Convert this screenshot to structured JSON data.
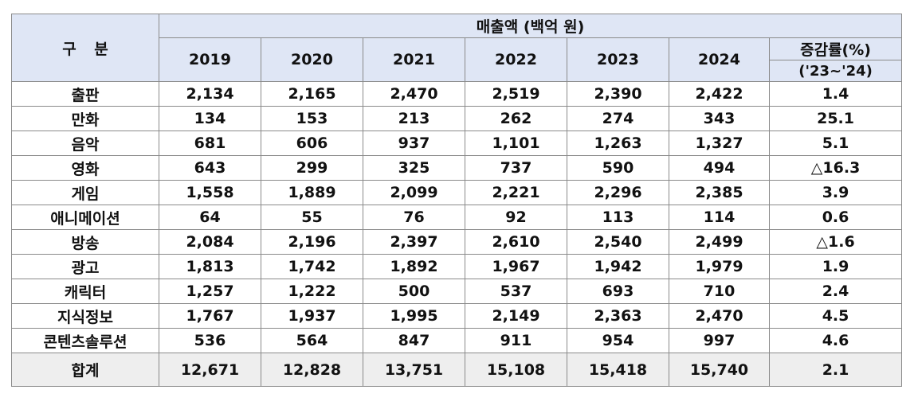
{
  "header": {
    "category_label": "구 분",
    "revenue_label": "매출액 (백억 원)",
    "years": [
      "2019",
      "2020",
      "2021",
      "2022",
      "2023",
      "2024"
    ],
    "change_label": "증감률(%)",
    "change_period": "('23~'24)"
  },
  "rows": [
    {
      "category": "출판",
      "values": [
        "2,134",
        "2,165",
        "2,470",
        "2,519",
        "2,390",
        "2,422"
      ],
      "change": "1.4"
    },
    {
      "category": "만화",
      "values": [
        "134",
        "153",
        "213",
        "262",
        "274",
        "343"
      ],
      "change": "25.1"
    },
    {
      "category": "음악",
      "values": [
        "681",
        "606",
        "937",
        "1,101",
        "1,263",
        "1,327"
      ],
      "change": "5.1"
    },
    {
      "category": "영화",
      "values": [
        "643",
        "299",
        "325",
        "737",
        "590",
        "494"
      ],
      "change": "△16.3"
    },
    {
      "category": "게임",
      "values": [
        "1,558",
        "1,889",
        "2,099",
        "2,221",
        "2,296",
        "2,385"
      ],
      "change": "3.9"
    },
    {
      "category": "애니메이션",
      "values": [
        "64",
        "55",
        "76",
        "92",
        "113",
        "114"
      ],
      "change": "0.6"
    },
    {
      "category": "방송",
      "values": [
        "2,084",
        "2,196",
        "2,397",
        "2,610",
        "2,540",
        "2,499"
      ],
      "change": "△1.6"
    },
    {
      "category": "광고",
      "values": [
        "1,813",
        "1,742",
        "1,892",
        "1,967",
        "1,942",
        "1,979"
      ],
      "change": "1.9"
    },
    {
      "category": "캐릭터",
      "values": [
        "1,257",
        "1,222",
        "500",
        "537",
        "693",
        "710"
      ],
      "change": "2.4"
    },
    {
      "category": "지식정보",
      "values": [
        "1,767",
        "1,937",
        "1,995",
        "2,149",
        "2,363",
        "2,470"
      ],
      "change": "4.5"
    },
    {
      "category": "콘텐츠솔루션",
      "values": [
        "536",
        "564",
        "847",
        "911",
        "954",
        "997"
      ],
      "change": "4.6"
    }
  ],
  "total": {
    "category": "합계",
    "values": [
      "12,671",
      "12,828",
      "13,751",
      "15,108",
      "15,418",
      "15,740"
    ],
    "change": "2.1"
  },
  "colors": {
    "header_bg": "#dfe6f5",
    "total_bg": "#eeeeee",
    "border": "#8a8a8a"
  }
}
